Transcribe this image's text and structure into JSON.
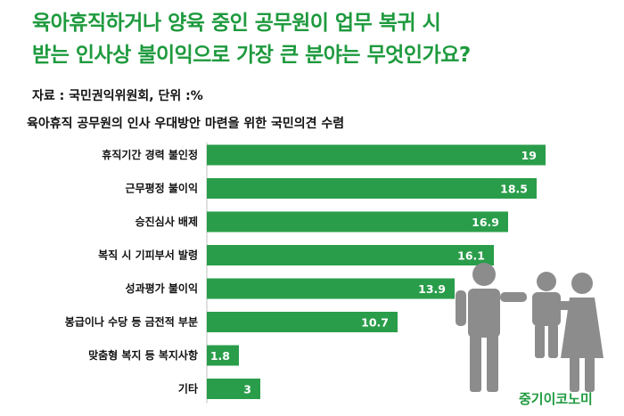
{
  "header": {
    "title_line1": "육아휴직하거나 양육 중인 공무원이 업무 복귀 시",
    "title_line2": "받는 인사상 불이익으로 가장 큰 분야는 무엇인가요?",
    "source": "자료 : 국민권익위원회, 단위 :%",
    "subtitle": "육아휴직 공무원의 인사 우대방안 마련을 위한 국민의견 수렴"
  },
  "brand": "중기이코노미",
  "colors": {
    "title": "#1e9a3e",
    "bar": "#2a9d4a",
    "figure": "#8c8c8c"
  },
  "icons": [
    "family-figure-icon"
  ],
  "chart_data": {
    "type": "bar",
    "orientation": "horizontal",
    "categories": [
      "휴직기간 경력 불인정",
      "근무평정 불이익",
      "승진심사 배제",
      "복직 시 기피부서 발령",
      "성과평가 불이익",
      "봉급이나 수당 등 금전적 부분",
      "맞춤형 복지 등 복지사항",
      "기타"
    ],
    "values": [
      19,
      18.5,
      16.9,
      16.1,
      13.9,
      10.7,
      1.8,
      3
    ],
    "value_labels": [
      "19",
      "18.5",
      "16.9",
      "16.1",
      "13.9",
      "10.7",
      "1.8",
      "3"
    ],
    "xlim": [
      0,
      19
    ],
    "grid": false
  }
}
